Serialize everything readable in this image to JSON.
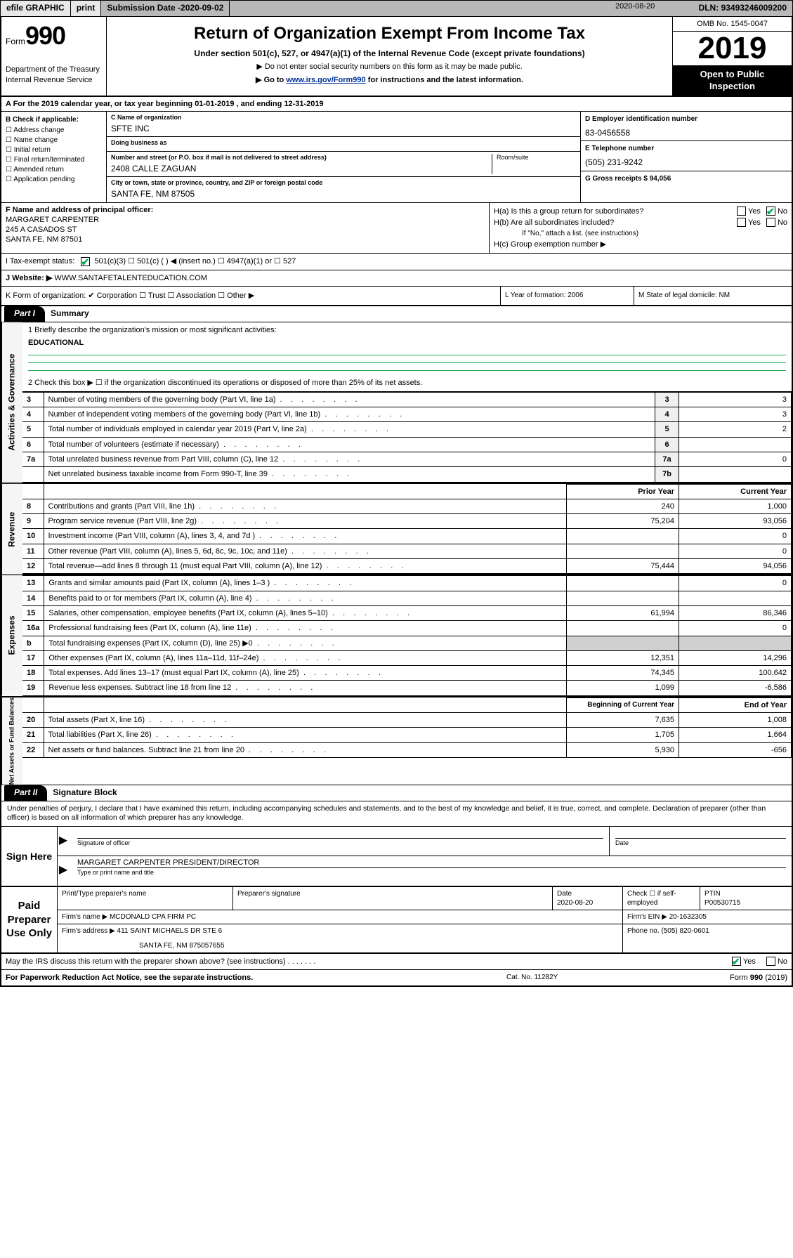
{
  "topbar": {
    "efile": "efile GRAPHIC",
    "print": "print",
    "sub_label": "Submission Date - ",
    "sub_date": "2020-09-02",
    "dln": "DLN: 93493246009200"
  },
  "hdr": {
    "form_word": "Form",
    "form_no": "990",
    "dept": "Department of the Treasury",
    "irs": "Internal Revenue Service",
    "title": "Return of Organization Exempt From Income Tax",
    "sub": "Under section 501(c), 527, or 4947(a)(1) of the Internal Revenue Code (except private foundations)",
    "sub2": "▶ Do not enter social security numbers on this form as it may be made public.",
    "sub3_pre": "▶ Go to ",
    "sub3_link": "www.irs.gov/Form990",
    "sub3_post": " for instructions and the latest information.",
    "omb": "OMB No. 1545-0047",
    "year": "2019",
    "open1": "Open to Public",
    "open2": "Inspection"
  },
  "rowA": {
    "text": "A For the 2019 calendar year, or tax year beginning 01-01-2019    , and ending 12-31-2019"
  },
  "B": {
    "hdr": "B Check if applicable:",
    "items": [
      "☐ Address change",
      "☐ Name change",
      "☐ Initial return",
      "☐ Final return/terminated",
      "☐ Amended return",
      "☐ Application pending"
    ]
  },
  "C": {
    "name_lbl": "C Name of organization",
    "name": "SFTE INC",
    "dba_lbl": "Doing business as",
    "dba": "",
    "addr_lbl": "Number and street (or P.O. box if mail is not delivered to street address)",
    "room_lbl": "Room/suite",
    "addr": "2408 CALLE ZAGUAN",
    "city_lbl": "City or town, state or province, country, and ZIP or foreign postal code",
    "city": "SANTA FE, NM  87505"
  },
  "D": {
    "lbl": "D Employer identification number",
    "val": "83-0456558"
  },
  "E": {
    "lbl": "E Telephone number",
    "val": "(505) 231-9242"
  },
  "G": {
    "lbl": "G Gross receipts $ 94,056"
  },
  "F": {
    "lbl": "F  Name and address of principal officer:",
    "l1": "MARGARET CARPENTER",
    "l2": "245 A CASADOS ST",
    "l3": "SANTA FE, NM  87501"
  },
  "H": {
    "a": "H(a)  Is this a group return for subordinates?",
    "b": "H(b)  Are all subordinates included?",
    "b2": "If \"No,\" attach a list. (see instructions)",
    "c": "H(c)  Group exemption number ▶",
    "yes": "Yes",
    "no": "No"
  },
  "I": {
    "lbl": "I   Tax-exempt status:",
    "opts": "501(c)(3)      ☐  501(c) (  ) ◀ (insert no.)      ☐  4947(a)(1) or   ☐  527"
  },
  "J": {
    "lbl": "J   Website: ▶",
    "val": "  WWW.SANTAFETALENTEDUCATION.COM"
  },
  "K": {
    "text": "K Form of organization:   ✔ Corporation  ☐ Trust  ☐ Association  ☐ Other ▶"
  },
  "L": {
    "text": "L Year of formation: 2006"
  },
  "M": {
    "text": "M State of legal domicile: NM"
  },
  "part1": {
    "tab": "Part I",
    "title": "Summary"
  },
  "summary": {
    "line1": "1  Briefly describe the organization's mission or most significant activities:",
    "mission": "EDUCATIONAL",
    "line2": "2   Check this box ▶ ☐  if the organization discontinued its operations or disposed of more than 25% of its net assets.",
    "rows_single": [
      {
        "n": "3",
        "d": "Number of voting members of the governing body (Part VI, line 1a)",
        "bx": "3",
        "v": "3"
      },
      {
        "n": "4",
        "d": "Number of independent voting members of the governing body (Part VI, line 1b)",
        "bx": "4",
        "v": "3"
      },
      {
        "n": "5",
        "d": "Total number of individuals employed in calendar year 2019 (Part V, line 2a)",
        "bx": "5",
        "v": "2"
      },
      {
        "n": "6",
        "d": "Total number of volunteers (estimate if necessary)",
        "bx": "6",
        "v": ""
      },
      {
        "n": "7a",
        "d": "Total unrelated business revenue from Part VIII, column (C), line 12",
        "bx": "7a",
        "v": "0"
      },
      {
        "n": "",
        "d": "Net unrelated business taxable income from Form 990-T, line 39",
        "bx": "7b",
        "v": ""
      }
    ],
    "col_hdr_prior": "Prior Year",
    "col_hdr_curr": "Current Year",
    "revenue": [
      {
        "n": "8",
        "d": "Contributions and grants (Part VIII, line 1h)",
        "p": "240",
        "c": "1,000"
      },
      {
        "n": "9",
        "d": "Program service revenue (Part VIII, line 2g)",
        "p": "75,204",
        "c": "93,056"
      },
      {
        "n": "10",
        "d": "Investment income (Part VIII, column (A), lines 3, 4, and 7d )",
        "p": "",
        "c": "0"
      },
      {
        "n": "11",
        "d": "Other revenue (Part VIII, column (A), lines 5, 6d, 8c, 9c, 10c, and 11e)",
        "p": "",
        "c": "0"
      },
      {
        "n": "12",
        "d": "Total revenue—add lines 8 through 11 (must equal Part VIII, column (A), line 12)",
        "p": "75,444",
        "c": "94,056"
      }
    ],
    "expenses": [
      {
        "n": "13",
        "d": "Grants and similar amounts paid (Part IX, column (A), lines 1–3 )",
        "p": "",
        "c": "0"
      },
      {
        "n": "14",
        "d": "Benefits paid to or for members (Part IX, column (A), line 4)",
        "p": "",
        "c": ""
      },
      {
        "n": "15",
        "d": "Salaries, other compensation, employee benefits (Part IX, column (A), lines 5–10)",
        "p": "61,994",
        "c": "86,346"
      },
      {
        "n": "16a",
        "d": "Professional fundraising fees (Part IX, column (A), line 11e)",
        "p": "",
        "c": "0"
      },
      {
        "n": "b",
        "d": "Total fundraising expenses (Part IX, column (D), line 25) ▶0",
        "p": "BLANK",
        "c": "BLANK"
      },
      {
        "n": "17",
        "d": "Other expenses (Part IX, column (A), lines 11a–11d, 11f–24e)",
        "p": "12,351",
        "c": "14,296"
      },
      {
        "n": "18",
        "d": "Total expenses. Add lines 13–17 (must equal Part IX, column (A), line 25)",
        "p": "74,345",
        "c": "100,642"
      },
      {
        "n": "19",
        "d": "Revenue less expenses. Subtract line 18 from line 12",
        "p": "1,099",
        "c": "-6,586"
      }
    ],
    "col_hdr_beg": "Beginning of Current Year",
    "col_hdr_end": "End of Year",
    "netassets": [
      {
        "n": "20",
        "d": "Total assets (Part X, line 16)",
        "p": "7,635",
        "c": "1,008"
      },
      {
        "n": "21",
        "d": "Total liabilities (Part X, line 26)",
        "p": "1,705",
        "c": "1,664"
      },
      {
        "n": "22",
        "d": "Net assets or fund balances. Subtract line 21 from line 20",
        "p": "5,930",
        "c": "-656"
      }
    ]
  },
  "vlabels": {
    "ag": "Activities & Governance",
    "rev": "Revenue",
    "exp": "Expenses",
    "na": "Net Assets or Fund Balances"
  },
  "part2": {
    "tab": "Part II",
    "title": "Signature Block"
  },
  "penalties": "Under penalties of perjury, I declare that I have examined this return, including accompanying schedules and statements, and to the best of my knowledge and belief, it is true, correct, and complete. Declaration of preparer (other than officer) is based on all information of which preparer has any knowledge.",
  "sign": {
    "here": "Sign Here",
    "sig_lbl": "Signature of officer",
    "date": "2020-08-20",
    "date_lbl": "Date",
    "name": "MARGARET CARPENTER  PRESIDENT/DIRECTOR",
    "name_lbl": "Type or print name and title"
  },
  "paid": {
    "title": "Paid Preparer Use Only",
    "h_name": "Print/Type preparer's name",
    "h_sig": "Preparer's signature",
    "h_date": "Date",
    "date": "2020-08-20",
    "h_chk": "Check ☐  if self-employed",
    "h_ptin": "PTIN",
    "ptin": "P00530715",
    "firm_lbl": "Firm's name     ▶",
    "firm": "MCDONALD CPA FIRM PC",
    "ein_lbl": "Firm's EIN ▶",
    "ein": "20-1632305",
    "addr_lbl": "Firm's address ▶",
    "addr1": "411 SAINT MICHAELS DR STE 6",
    "addr2": "SANTA FE, NM  875057655",
    "phone_lbl": "Phone no.",
    "phone": "(505) 820-0601"
  },
  "discuss": {
    "text": "May the IRS discuss this return with the preparer shown above? (see instructions)",
    "yes": "Yes",
    "no": "No"
  },
  "footer": {
    "pra": "For Paperwork Reduction Act Notice, see the separate instructions.",
    "cat": "Cat. No. 11282Y",
    "form": "Form 990 (2019)"
  },
  "colors": {
    "topbar_bg": "#b8b8b8",
    "btn_bg": "#e8e8e8",
    "link": "#003399",
    "rule_green": "#2a5",
    "check_green": "#0a5",
    "vlabel_bg": "#f5f5f5",
    "blank_bg": "#d0d0d0"
  }
}
